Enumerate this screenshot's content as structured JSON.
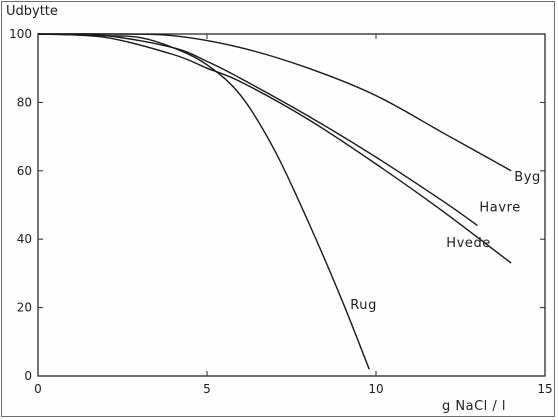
{
  "chart_data": {
    "type": "line",
    "title": "",
    "xlabel": "g  NaCl / l",
    "ylabel": "Udbytte",
    "xlim": [
      0,
      15
    ],
    "ylim": [
      0,
      100
    ],
    "x_ticks": [
      0,
      5,
      10,
      15
    ],
    "y_ticks": [
      0,
      20,
      40,
      60,
      80,
      100
    ],
    "grid": false,
    "legend": "none (series labelled directly at line ends)",
    "series": [
      {
        "name": "Byg",
        "x": [
          0,
          2,
          4,
          6,
          8,
          10,
          12,
          14
        ],
        "y": [
          100,
          100,
          99.5,
          96,
          90,
          82,
          71,
          60
        ]
      },
      {
        "name": "Havre",
        "x": [
          0,
          2,
          4,
          5,
          6,
          8,
          10,
          12,
          13
        ],
        "y": [
          100,
          99.5,
          96,
          92,
          87,
          76,
          64,
          51,
          44
        ]
      },
      {
        "name": "Hvede",
        "x": [
          0,
          2,
          4,
          5,
          6,
          8,
          10,
          12,
          14
        ],
        "y": [
          100,
          99,
          94,
          90,
          86,
          75,
          62,
          48,
          33
        ]
      },
      {
        "name": "Rug",
        "x": [
          0,
          2,
          3,
          4,
          5,
          6,
          7,
          8,
          9,
          9.8
        ],
        "y": [
          100,
          99.5,
          99,
          96,
          91,
          82,
          66,
          45,
          22,
          2
        ]
      }
    ]
  }
}
